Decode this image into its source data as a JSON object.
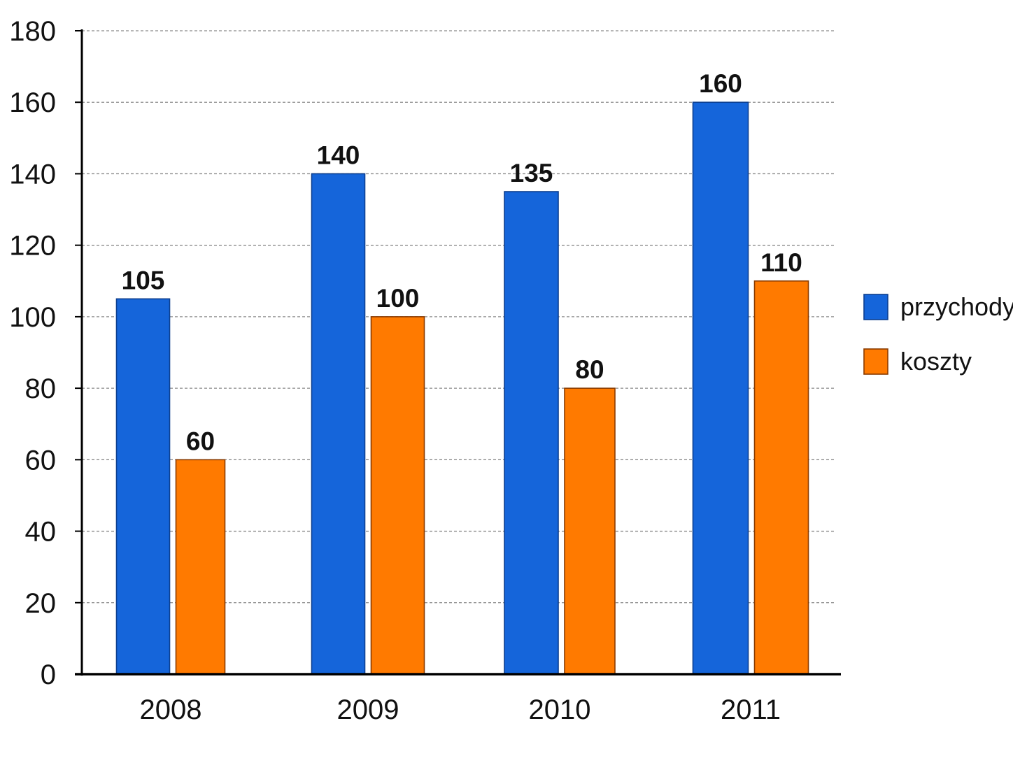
{
  "chart_data": {
    "type": "bar",
    "title": "",
    "xlabel": "",
    "ylabel": "",
    "categories": [
      "2008",
      "2009",
      "2010",
      "2011"
    ],
    "series": [
      {
        "name": "przychody",
        "color": "#1565DA",
        "values": [
          105,
          140,
          135,
          160
        ]
      },
      {
        "name": "koszty",
        "color": "#FF7A00",
        "values": [
          60,
          100,
          80,
          110
        ]
      }
    ],
    "ylim": [
      0,
      180
    ],
    "yticks": [
      0,
      20,
      40,
      60,
      80,
      100,
      120,
      140,
      160,
      180
    ],
    "grid": "horizontal dashed",
    "legend_position": "right",
    "data_labels": true
  }
}
